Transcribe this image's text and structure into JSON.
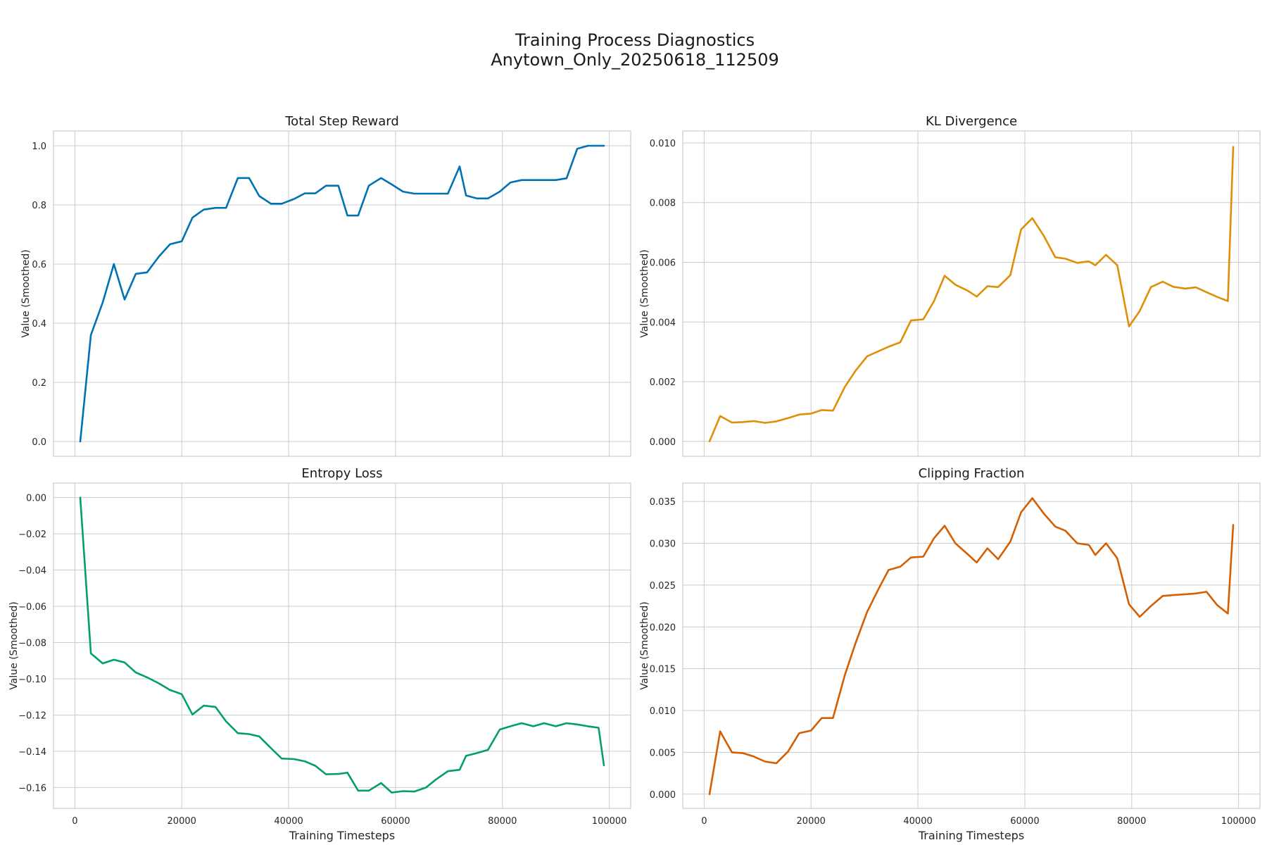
{
  "figure": {
    "title_line1": "Training Process Diagnostics",
    "title_line2": "Anytown_Only_20250618_112509"
  },
  "chart_data": [
    {
      "type": "line",
      "title": "Total Step Reward",
      "xlabel": "",
      "ylabel": "Value (Smoothed)",
      "xlim": [
        -4000,
        104000
      ],
      "ylim": [
        -0.05,
        1.05
      ],
      "xticks": [
        0,
        20000,
        40000,
        60000,
        80000,
        100000
      ],
      "yticks": [
        0.0,
        0.2,
        0.4,
        0.6,
        0.8,
        1.0
      ],
      "ytick_labels": [
        "0.0",
        "0.2",
        "0.4",
        "0.6",
        "0.8",
        "1.0"
      ],
      "xtick_labels_visible": false,
      "color": "#0072b2",
      "x": [
        1000,
        3000,
        5200,
        7300,
        9300,
        11400,
        13500,
        15700,
        17800,
        20000,
        22000,
        24100,
        26300,
        28300,
        30500,
        32600,
        34500,
        36700,
        38700,
        41000,
        43000,
        45000,
        47000,
        49300,
        51000,
        53000,
        55000,
        57300,
        59300,
        61400,
        63500,
        65700,
        67600,
        69800,
        72000,
        73200,
        75200,
        77300,
        79500,
        81500,
        83600,
        85800,
        87800,
        90000,
        92000,
        94000,
        96000,
        99000
      ],
      "y": [
        0.0,
        0.36,
        0.47,
        0.6,
        0.48,
        0.567,
        0.572,
        0.625,
        0.667,
        0.677,
        0.757,
        0.784,
        0.79,
        0.79,
        0.891,
        0.891,
        0.83,
        0.804,
        0.804,
        0.82,
        0.839,
        0.839,
        0.865,
        0.865,
        0.764,
        0.764,
        0.865,
        0.891,
        0.869,
        0.845,
        0.838,
        0.838,
        0.838,
        0.838,
        0.93,
        0.832,
        0.822,
        0.822,
        0.845,
        0.876,
        0.884,
        0.884,
        0.884,
        0.884,
        0.89,
        0.99,
        1.0,
        1.0
      ]
    },
    {
      "type": "line",
      "title": "KL Divergence",
      "xlabel": "",
      "ylabel": "Value (Smoothed)",
      "xlim": [
        -4000,
        104000
      ],
      "ylim": [
        -0.0005,
        0.0104
      ],
      "xticks": [
        0,
        20000,
        40000,
        60000,
        80000,
        100000
      ],
      "yticks": [
        0.0,
        0.002,
        0.004,
        0.006,
        0.008,
        0.01
      ],
      "ytick_labels": [
        "0.000",
        "0.002",
        "0.004",
        "0.006",
        "0.008",
        "0.010"
      ],
      "xtick_labels_visible": false,
      "color": "#de8f05",
      "x": [
        1000,
        3000,
        5200,
        7300,
        9300,
        11400,
        13500,
        15700,
        17800,
        20000,
        22000,
        24100,
        26300,
        28300,
        30500,
        32600,
        34500,
        36700,
        38700,
        41000,
        43000,
        45000,
        47000,
        49300,
        51000,
        53000,
        55000,
        57300,
        59300,
        61400,
        63500,
        65700,
        67600,
        69800,
        72000,
        73200,
        75200,
        77300,
        79500,
        81500,
        83600,
        85800,
        87800,
        90000,
        92000,
        94000,
        96000,
        98000,
        99000
      ],
      "y": [
        0.0,
        0.00085,
        0.00063,
        0.00065,
        0.00068,
        0.00062,
        0.00067,
        0.00078,
        0.0009,
        0.00093,
        0.00105,
        0.00103,
        0.00182,
        0.00236,
        0.00285,
        0.00302,
        0.00317,
        0.00332,
        0.00405,
        0.00409,
        0.0047,
        0.00555,
        0.00525,
        0.00505,
        0.00485,
        0.0052,
        0.00517,
        0.00557,
        0.0071,
        0.00748,
        0.0069,
        0.00617,
        0.00612,
        0.00598,
        0.00603,
        0.0059,
        0.00625,
        0.0059,
        0.00385,
        0.00437,
        0.00517,
        0.00535,
        0.00518,
        0.00512,
        0.00516,
        0.005,
        0.00484,
        0.0047,
        0.00987
      ]
    },
    {
      "type": "line",
      "title": "Entropy Loss",
      "xlabel": "Training Timesteps",
      "ylabel": "Value (Smoothed)",
      "xlim": [
        -4000,
        104000
      ],
      "ylim": [
        -0.1715,
        0.008
      ],
      "xticks": [
        0,
        20000,
        40000,
        60000,
        80000,
        100000
      ],
      "xtick_labels": [
        "0",
        "20000",
        "40000",
        "60000",
        "80000",
        "100000"
      ],
      "yticks": [
        0.0,
        -0.02,
        -0.04,
        -0.06,
        -0.08,
        -0.1,
        -0.12,
        -0.14,
        -0.16
      ],
      "ytick_labels": [
        "0.00",
        "−0.02",
        "−0.04",
        "−0.06",
        "−0.08",
        "−0.10",
        "−0.12",
        "−0.14",
        "−0.16"
      ],
      "xtick_labels_visible": true,
      "color": "#029e73",
      "x": [
        1000,
        3000,
        5200,
        7300,
        9300,
        11400,
        13500,
        15700,
        17800,
        20000,
        22000,
        24100,
        26300,
        28300,
        30500,
        32600,
        34500,
        36700,
        38700,
        41000,
        43000,
        45000,
        47000,
        49300,
        51000,
        53000,
        55000,
        57300,
        59300,
        61400,
        63500,
        65700,
        67600,
        69800,
        72000,
        73200,
        75200,
        77300,
        79500,
        81500,
        83600,
        85800,
        87800,
        90000,
        92000,
        94000,
        96000,
        98000,
        99000
      ],
      "y": [
        0.0,
        -0.086,
        -0.0915,
        -0.0895,
        -0.091,
        -0.0965,
        -0.0992,
        -0.1025,
        -0.1062,
        -0.1085,
        -0.1197,
        -0.1148,
        -0.1155,
        -0.1235,
        -0.13,
        -0.1305,
        -0.1318,
        -0.1383,
        -0.144,
        -0.1443,
        -0.1455,
        -0.148,
        -0.1527,
        -0.1525,
        -0.1518,
        -0.1617,
        -0.1617,
        -0.1575,
        -0.1628,
        -0.162,
        -0.1622,
        -0.16,
        -0.1555,
        -0.151,
        -0.1502,
        -0.1425,
        -0.141,
        -0.1392,
        -0.128,
        -0.1262,
        -0.1245,
        -0.1262,
        -0.1245,
        -0.1262,
        -0.1245,
        -0.1252,
        -0.1262,
        -0.127,
        -0.1478
      ]
    },
    {
      "type": "line",
      "title": "Clipping Fraction",
      "xlabel": "Training Timesteps",
      "ylabel": "Value (Smoothed)",
      "xlim": [
        -4000,
        104000
      ],
      "ylim": [
        -0.0017,
        0.0372
      ],
      "xticks": [
        0,
        20000,
        40000,
        60000,
        80000,
        100000
      ],
      "xtick_labels": [
        "0",
        "20000",
        "40000",
        "60000",
        "80000",
        "100000"
      ],
      "yticks": [
        0.0,
        0.005,
        0.01,
        0.015,
        0.02,
        0.025,
        0.03,
        0.035
      ],
      "ytick_labels": [
        "0.000",
        "0.005",
        "0.010",
        "0.015",
        "0.020",
        "0.025",
        "0.030",
        "0.035"
      ],
      "xtick_labels_visible": true,
      "color": "#d55e00",
      "x": [
        1000,
        3000,
        5200,
        7300,
        9300,
        11400,
        13500,
        15700,
        17800,
        20000,
        22000,
        24100,
        26300,
        28300,
        30500,
        32600,
        34500,
        36700,
        38700,
        41000,
        43000,
        45000,
        47000,
        49300,
        51000,
        53000,
        55000,
        57300,
        59300,
        61400,
        63500,
        65700,
        67600,
        69800,
        72000,
        73200,
        75200,
        77300,
        79500,
        81500,
        83600,
        85800,
        87800,
        90000,
        92000,
        94000,
        96000,
        98000,
        99000
      ],
      "y": [
        0.0,
        0.0075,
        0.005,
        0.0049,
        0.0045,
        0.0039,
        0.0037,
        0.0051,
        0.0073,
        0.0076,
        0.0091,
        0.0091,
        0.0142,
        0.018,
        0.0218,
        0.0245,
        0.0268,
        0.0272,
        0.0283,
        0.0284,
        0.0306,
        0.0321,
        0.03,
        0.0287,
        0.0277,
        0.0294,
        0.0281,
        0.0302,
        0.0337,
        0.0354,
        0.0336,
        0.032,
        0.0315,
        0.03,
        0.0298,
        0.0286,
        0.03,
        0.0282,
        0.0227,
        0.0212,
        0.0225,
        0.0237,
        0.0238,
        0.0239,
        0.024,
        0.0242,
        0.0226,
        0.0216,
        0.0322
      ]
    }
  ]
}
